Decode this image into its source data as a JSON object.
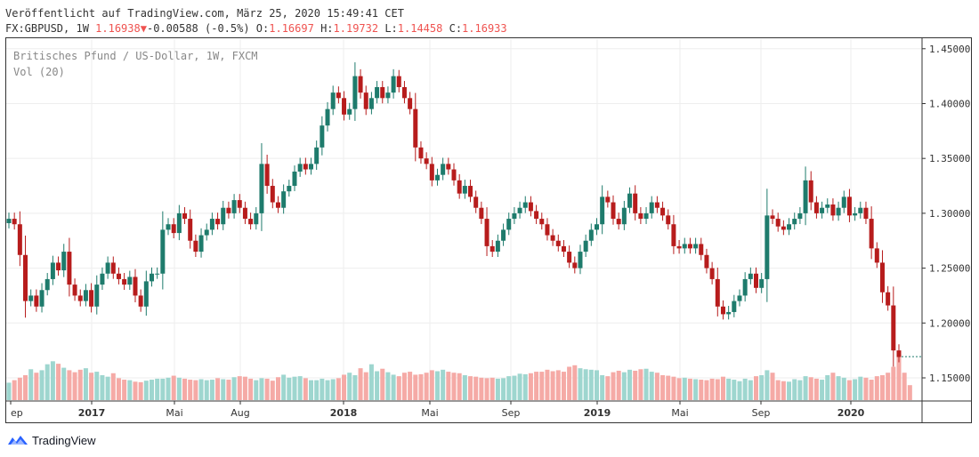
{
  "header": {
    "published": "Veröffentlicht auf TradingView.com, März 25, 2020 15:49:41 CET",
    "symbol": "FX:GBPUSD, 1W",
    "last": "1.16938",
    "arrow": "▼",
    "change": "-0.00588 (-0.5%)",
    "o_label": "O:",
    "o_value": "1.16697",
    "h_label": "H:",
    "h_value": "1.19732",
    "l_label": "L:",
    "l_value": "1.14458",
    "c_label": "C:",
    "c_value": "1.16933"
  },
  "legend": {
    "title": "Britisches Pfund / US-Dollar, 1W, FXCM",
    "volume": "Vol (20)"
  },
  "footer": {
    "brand": "TradingView"
  },
  "colors": {
    "up": "#26a69a",
    "down": "#ef5350",
    "up_candle": "#1e7b6c",
    "down_candle": "#b71c1c",
    "vol_up": "#9ed6cf",
    "vol_down": "#f5aaa6",
    "grid": "#eeeeee",
    "axis": "#333333"
  },
  "chart_data": {
    "type": "candlestick",
    "x_axis_labels": [
      "ep",
      "2017",
      "Mai",
      "Aug",
      "2018",
      "Mai",
      "Sep",
      "2019",
      "Mai",
      "Sep",
      "2020"
    ],
    "y_ticks": [
      "1.45000",
      "1.40000",
      "1.35000",
      "1.30000",
      "1.25000",
      "1.20000",
      "1.15000"
    ],
    "ylim": [
      1.1275,
      1.4555
    ],
    "last_close": 1.16933,
    "close": [
      1.295,
      1.29,
      1.262,
      1.22,
      1.225,
      1.215,
      1.23,
      1.24,
      1.255,
      1.248,
      1.265,
      1.235,
      1.225,
      1.22,
      1.23,
      1.215,
      1.235,
      1.245,
      1.255,
      1.245,
      1.24,
      1.235,
      1.242,
      1.225,
      1.215,
      1.238,
      1.245,
      1.245,
      1.285,
      1.29,
      1.282,
      1.3,
      1.295,
      1.275,
      1.265,
      1.28,
      1.285,
      1.295,
      1.29,
      1.305,
      1.3,
      1.312,
      1.305,
      1.295,
      1.29,
      1.3,
      1.345,
      1.325,
      1.31,
      1.305,
      1.32,
      1.325,
      1.338,
      1.345,
      1.34,
      1.345,
      1.36,
      1.38,
      1.395,
      1.41,
      1.405,
      1.39,
      1.395,
      1.425,
      1.41,
      1.395,
      1.405,
      1.415,
      1.405,
      1.41,
      1.425,
      1.415,
      1.405,
      1.395,
      1.36,
      1.35,
      1.345,
      1.33,
      1.335,
      1.345,
      1.34,
      1.33,
      1.318,
      1.325,
      1.315,
      1.305,
      1.295,
      1.27,
      1.265,
      1.275,
      1.285,
      1.295,
      1.3,
      1.305,
      1.31,
      1.302,
      1.295,
      1.29,
      1.28,
      1.275,
      1.27,
      1.265,
      1.255,
      1.25,
      1.265,
      1.275,
      1.285,
      1.29,
      1.315,
      1.31,
      1.295,
      1.29,
      1.305,
      1.318,
      1.3,
      1.295,
      1.3,
      1.31,
      1.305,
      1.298,
      1.29,
      1.27,
      1.268,
      1.272,
      1.268,
      1.272,
      1.262,
      1.25,
      1.24,
      1.215,
      1.208,
      1.21,
      1.22,
      1.225,
      1.24,
      1.245,
      1.232,
      1.24,
      1.298,
      1.295,
      1.288,
      1.285,
      1.29,
      1.295,
      1.3,
      1.33,
      1.31,
      1.3,
      1.305,
      1.308,
      1.298,
      1.305,
      1.315,
      1.298,
      1.3,
      1.305,
      1.295,
      1.268,
      1.255,
      1.228,
      1.216,
      1.175,
      1.169
    ],
    "volume_relative": [
      0.35,
      0.4,
      0.45,
      0.5,
      0.62,
      0.55,
      0.6,
      0.72,
      0.78,
      0.73,
      0.65,
      0.6,
      0.56,
      0.61,
      0.64,
      0.55,
      0.57,
      0.5,
      0.47,
      0.54,
      0.44,
      0.41,
      0.4,
      0.37,
      0.36,
      0.39,
      0.41,
      0.43,
      0.43,
      0.45,
      0.49,
      0.45,
      0.43,
      0.41,
      0.4,
      0.42,
      0.4,
      0.41,
      0.44,
      0.42,
      0.41,
      0.46,
      0.48,
      0.47,
      0.43,
      0.4,
      0.44,
      0.43,
      0.39,
      0.46,
      0.51,
      0.45,
      0.47,
      0.48,
      0.44,
      0.4,
      0.4,
      0.43,
      0.4,
      0.42,
      0.44,
      0.51,
      0.55,
      0.5,
      0.64,
      0.56,
      0.72,
      0.58,
      0.63,
      0.56,
      0.51,
      0.48,
      0.55,
      0.57,
      0.51,
      0.52,
      0.55,
      0.6,
      0.58,
      0.61,
      0.57,
      0.55,
      0.54,
      0.5,
      0.48,
      0.47,
      0.45,
      0.44,
      0.45,
      0.43,
      0.44,
      0.48,
      0.49,
      0.53,
      0.52,
      0.54,
      0.57,
      0.57,
      0.61,
      0.58,
      0.6,
      0.57,
      0.67,
      0.7,
      0.64,
      0.62,
      0.61,
      0.6,
      0.5,
      0.48,
      0.56,
      0.59,
      0.56,
      0.61,
      0.59,
      0.62,
      0.63,
      0.57,
      0.55,
      0.5,
      0.49,
      0.47,
      0.44,
      0.45,
      0.43,
      0.42,
      0.41,
      0.4,
      0.43,
      0.42,
      0.47,
      0.43,
      0.41,
      0.38,
      0.43,
      0.4,
      0.48,
      0.5,
      0.6,
      0.55,
      0.4,
      0.38,
      0.37,
      0.42,
      0.4,
      0.48,
      0.46,
      0.43,
      0.41,
      0.5,
      0.55,
      0.48,
      0.45,
      0.4,
      0.42,
      0.47,
      0.45,
      0.41,
      0.48,
      0.5,
      0.55,
      0.67,
      0.96,
      0.55,
      0.3
    ]
  }
}
